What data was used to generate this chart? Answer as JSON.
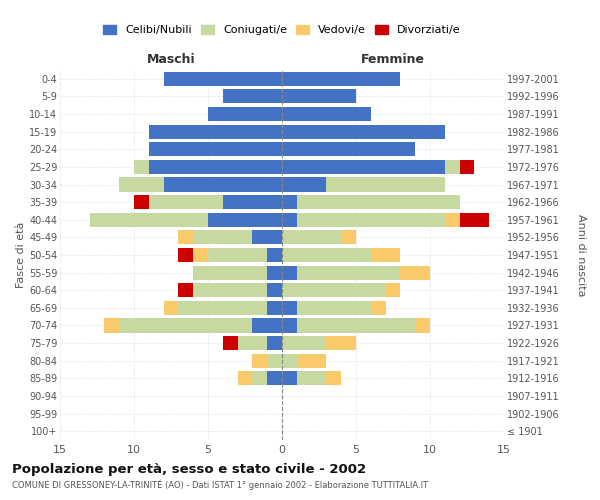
{
  "age_groups": [
    "100+",
    "95-99",
    "90-94",
    "85-89",
    "80-84",
    "75-79",
    "70-74",
    "65-69",
    "60-64",
    "55-59",
    "50-54",
    "45-49",
    "40-44",
    "35-39",
    "30-34",
    "25-29",
    "20-24",
    "15-19",
    "10-14",
    "5-9",
    "0-4"
  ],
  "birth_years": [
    "≤ 1901",
    "1902-1906",
    "1907-1911",
    "1912-1916",
    "1917-1921",
    "1922-1926",
    "1927-1931",
    "1932-1936",
    "1937-1941",
    "1942-1946",
    "1947-1951",
    "1952-1956",
    "1957-1961",
    "1962-1966",
    "1967-1971",
    "1972-1976",
    "1977-1981",
    "1982-1986",
    "1987-1991",
    "1992-1996",
    "1997-2001"
  ],
  "males": {
    "celibi": [
      0,
      0,
      0,
      1,
      0,
      1,
      2,
      1,
      1,
      1,
      1,
      2,
      5,
      4,
      8,
      9,
      9,
      9,
      5,
      4,
      8
    ],
    "coniugati": [
      0,
      0,
      0,
      1,
      1,
      2,
      9,
      6,
      5,
      5,
      4,
      4,
      8,
      5,
      3,
      1,
      0,
      0,
      0,
      0,
      0
    ],
    "vedovi": [
      0,
      0,
      0,
      1,
      1,
      0,
      1,
      1,
      0,
      0,
      1,
      1,
      0,
      0,
      0,
      0,
      0,
      0,
      0,
      0,
      0
    ],
    "divorziati": [
      0,
      0,
      0,
      0,
      0,
      1,
      0,
      0,
      1,
      0,
      1,
      0,
      0,
      1,
      0,
      0,
      0,
      0,
      0,
      0,
      0
    ]
  },
  "females": {
    "nubili": [
      0,
      0,
      0,
      1,
      0,
      0,
      1,
      1,
      0,
      1,
      0,
      0,
      1,
      1,
      3,
      11,
      9,
      11,
      6,
      5,
      8
    ],
    "coniugate": [
      0,
      0,
      0,
      2,
      1,
      3,
      8,
      5,
      7,
      7,
      6,
      4,
      10,
      11,
      8,
      1,
      0,
      0,
      0,
      0,
      0
    ],
    "vedove": [
      0,
      0,
      0,
      1,
      2,
      2,
      1,
      1,
      1,
      2,
      2,
      1,
      1,
      0,
      0,
      0,
      0,
      0,
      0,
      0,
      0
    ],
    "divorziate": [
      0,
      0,
      0,
      0,
      0,
      0,
      0,
      0,
      0,
      0,
      0,
      0,
      2,
      0,
      0,
      1,
      0,
      0,
      0,
      0,
      0
    ]
  },
  "color_celibi": "#4472c4",
  "color_coniugati": "#c5d9a0",
  "color_vedovi": "#fac96a",
  "color_divorziati": "#cc0000",
  "xlim": 15,
  "title": "Popolazione per età, sesso e stato civile - 2002",
  "subtitle": "COMUNE DI GRESSONEY-LA-TRINITÉ (AO) - Dati ISTAT 1° gennaio 2002 - Elaborazione TUTTITALIA.IT",
  "ylabel_left": "Fasce di età",
  "ylabel_right": "Anni di nascita",
  "xlabel_left": "Maschi",
  "xlabel_right": "Femmine"
}
